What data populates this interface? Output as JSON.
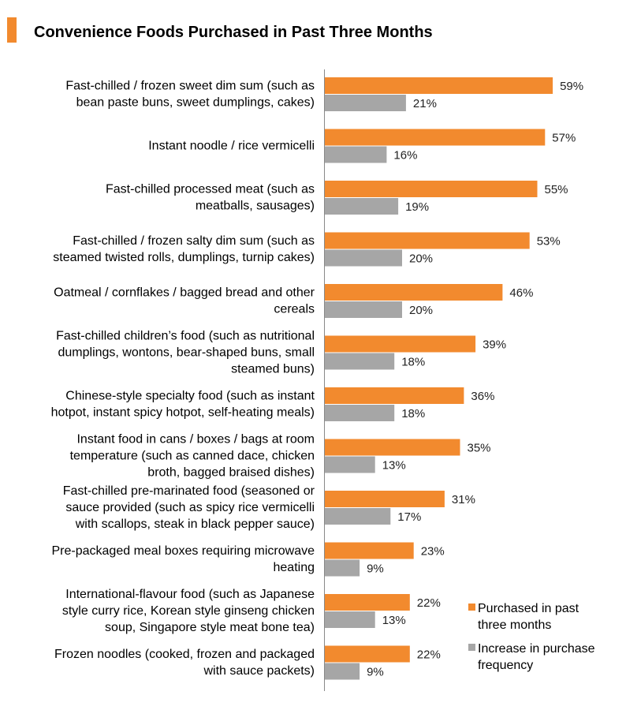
{
  "header": {
    "title": "Convenience Foods Purchased in Past Three Months",
    "accent": "#f28a2e"
  },
  "chart_data": {
    "type": "bar",
    "orientation": "horizontal",
    "title": "Convenience Foods Purchased in Past Three Months",
    "categories": [
      [
        "Fast-chilled / frozen sweet dim sum (such as",
        "bean paste buns, sweet dumplings, cakes)"
      ],
      [
        "Instant noodle / rice vermicelli"
      ],
      [
        "Fast-chilled processed meat (such as",
        "meatballs, sausages)"
      ],
      [
        "Fast-chilled / frozen salty dim sum (such as",
        "steamed twisted rolls, dumplings, turnip cakes)"
      ],
      [
        "Oatmeal / cornflakes / bagged bread and other",
        "cereals"
      ],
      [
        "Fast-chilled children’s food (such as nutritional",
        "dumplings, wontons, bear-shaped buns, small",
        "steamed buns)"
      ],
      [
        "Chinese-style specialty food  (such as instant",
        "hotpot, instant spicy hotpot, self-heating meals)"
      ],
      [
        "Instant food in cans / boxes / bags at room",
        "temperature (such as canned dace, chicken",
        "broth, bagged braised dishes)"
      ],
      [
        "Fast-chilled pre-marinated food (seasoned or",
        "sauce provided (such as spicy rice vermicelli",
        "with scallops, steak in black pepper sauce)"
      ],
      [
        "Pre-packaged meal boxes requiring microwave",
        "heating"
      ],
      [
        "International-flavour food (such as Japanese",
        "style curry rice, Korean style ginseng chicken",
        "soup, Singapore style meat bone tea)"
      ],
      [
        "Frozen noodles (cooked, frozen and packaged",
        "with sauce packets)"
      ]
    ],
    "series": [
      {
        "name": "Purchased in past three months",
        "color": "#f28a2e",
        "values": [
          59,
          57,
          55,
          53,
          46,
          39,
          36,
          35,
          31,
          23,
          22,
          22
        ]
      },
      {
        "name": "Increase in purchase frequency",
        "color": "#a6a6a6",
        "values": [
          21,
          16,
          19,
          20,
          20,
          18,
          18,
          13,
          17,
          9,
          13,
          9
        ]
      }
    ],
    "value_format": "%",
    "legend": {
      "position": "bottom-right",
      "lines": [
        [
          "Purchased in past",
          "three months"
        ],
        [
          "Increase in purchase",
          "frequency"
        ]
      ]
    },
    "grid": false
  }
}
